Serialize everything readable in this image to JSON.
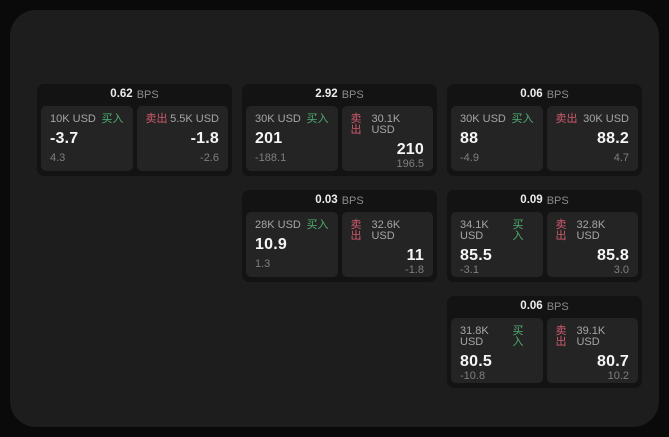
{
  "labels": {
    "bps": "BPS",
    "buy": "买入",
    "sell": "卖出"
  },
  "colors": {
    "buy": "#4fae73",
    "sell": "#cf5a6c",
    "panel_bg": "#1d1d1d",
    "card_bg": "#131313",
    "tile_bg": "#242424"
  },
  "cards": [
    {
      "bps": "0.62",
      "col": 1,
      "row": 1,
      "buy": {
        "size": "10K USD",
        "price": "-3.7",
        "sub": "4.3"
      },
      "sell": {
        "size": "5.5K USD",
        "price": "-1.8",
        "sub": "-2.6"
      }
    },
    {
      "bps": "2.92",
      "col": 2,
      "row": 1,
      "buy": {
        "size": "30K USD",
        "price": "201",
        "sub": "-188.1"
      },
      "sell": {
        "size": "30.1K USD",
        "price": "210",
        "sub": "196.5"
      }
    },
    {
      "bps": "0.06",
      "col": 3,
      "row": 1,
      "buy": {
        "size": "30K USD",
        "price": "88",
        "sub": "-4.9"
      },
      "sell": {
        "size": "30K USD",
        "price": "88.2",
        "sub": "4.7"
      }
    },
    {
      "bps": "0.03",
      "col": 2,
      "row": 2,
      "buy": {
        "size": "28K USD",
        "price": "10.9",
        "sub": "1.3"
      },
      "sell": {
        "size": "32.6K USD",
        "price": "11",
        "sub": "-1.8"
      }
    },
    {
      "bps": "0.09",
      "col": 3,
      "row": 2,
      "buy": {
        "size": "34.1K USD",
        "price": "85.5",
        "sub": "-3.1"
      },
      "sell": {
        "size": "32.8K USD",
        "price": "85.8",
        "sub": "3.0"
      }
    },
    {
      "bps": "0.06",
      "col": 3,
      "row": 3,
      "buy": {
        "size": "31.8K USD",
        "price": "80.5",
        "sub": "-10.8"
      },
      "sell": {
        "size": "39.1K USD",
        "price": "80.7",
        "sub": "10.2"
      }
    }
  ]
}
